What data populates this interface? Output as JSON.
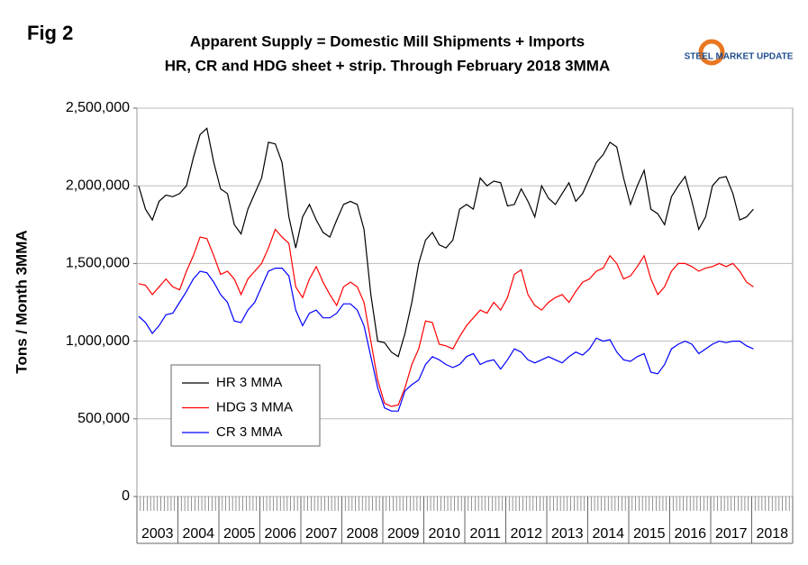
{
  "chart_data": {
    "type": "line",
    "figure_label": "Fig 2",
    "title": "Apparent Supply = Domestic Mill Shipments + Imports",
    "subtitle": "HR, CR and HDG sheet + strip. Through February 2018 3MMA",
    "logo": "STEEL MARKET UPDATE",
    "y_label": "Tons / Month 3MMA",
    "year_labels": [
      "2003",
      "2004",
      "2005",
      "2006",
      "2007",
      "2008",
      "2009",
      "2010",
      "2011",
      "2012",
      "2013",
      "2014",
      "2015",
      "2016",
      "2017",
      "2018"
    ],
    "ylim": [
      0,
      2500000
    ],
    "yticks": [
      0,
      {
        "value": 500000,
        "label": "500,000"
      },
      {
        "value": 1000000,
        "label": "1,000,000"
      },
      {
        "value": 1500000,
        "label": "1,500,000"
      },
      {
        "value": 2000000,
        "label": "2,000,000"
      },
      {
        "value": 2500000,
        "label": "2,500,000"
      }
    ],
    "grid": true,
    "legend": "lower-left",
    "series": [
      {
        "name": "HR 3 MMA",
        "color": "#000000",
        "values": [
          2000000,
          1850000,
          1780000,
          1900000,
          1940000,
          1930000,
          1950000,
          2000000,
          2180000,
          2330000,
          2370000,
          2150000,
          1980000,
          1950000,
          1750000,
          1690000,
          1850000,
          1950000,
          2050000,
          2280000,
          2270000,
          2150000,
          1800000,
          1600000,
          1800000,
          1880000,
          1780000,
          1700000,
          1670000,
          1780000,
          1880000,
          1900000,
          1880000,
          1720000,
          1300000,
          1000000,
          990000,
          930000,
          900000,
          1050000,
          1250000,
          1500000,
          1650000,
          1700000,
          1620000,
          1600000,
          1650000,
          1850000,
          1880000,
          1850000,
          2050000,
          2000000,
          2030000,
          2020000,
          1870000,
          1880000,
          1980000,
          1900000,
          1800000,
          2000000,
          1920000,
          1880000,
          1950000,
          2020000,
          1900000,
          1950000,
          2050000,
          2150000,
          2200000,
          2280000,
          2250000,
          2050000,
          1880000,
          2000000,
          2100000,
          1850000,
          1820000,
          1750000,
          1930000,
          2000000,
          2060000,
          1900000,
          1720000,
          1800000,
          2000000,
          2050000,
          2060000,
          1950000,
          1780000,
          1800000,
          1850000
        ]
      },
      {
        "name": "HDG 3 MMA",
        "color": "#ff0000",
        "values": [
          1370000,
          1360000,
          1300000,
          1350000,
          1400000,
          1350000,
          1330000,
          1450000,
          1550000,
          1670000,
          1660000,
          1550000,
          1430000,
          1450000,
          1400000,
          1300000,
          1400000,
          1450000,
          1500000,
          1600000,
          1720000,
          1670000,
          1630000,
          1350000,
          1280000,
          1400000,
          1480000,
          1380000,
          1300000,
          1230000,
          1350000,
          1380000,
          1350000,
          1250000,
          1000000,
          750000,
          600000,
          580000,
          590000,
          700000,
          850000,
          950000,
          1130000,
          1120000,
          980000,
          970000,
          950000,
          1030000,
          1100000,
          1150000,
          1200000,
          1180000,
          1250000,
          1200000,
          1280000,
          1430000,
          1460000,
          1300000,
          1230000,
          1200000,
          1250000,
          1280000,
          1300000,
          1250000,
          1320000,
          1380000,
          1400000,
          1450000,
          1470000,
          1550000,
          1500000,
          1400000,
          1420000,
          1480000,
          1550000,
          1400000,
          1300000,
          1350000,
          1450000,
          1500000,
          1500000,
          1480000,
          1450000,
          1470000,
          1480000,
          1500000,
          1480000,
          1500000,
          1450000,
          1380000,
          1350000
        ]
      },
      {
        "name": "CR 3 MMA",
        "color": "#0000ff",
        "values": [
          1160000,
          1120000,
          1050000,
          1100000,
          1170000,
          1180000,
          1250000,
          1320000,
          1400000,
          1450000,
          1440000,
          1380000,
          1300000,
          1250000,
          1130000,
          1120000,
          1200000,
          1250000,
          1350000,
          1450000,
          1470000,
          1470000,
          1420000,
          1200000,
          1100000,
          1180000,
          1200000,
          1150000,
          1150000,
          1180000,
          1240000,
          1240000,
          1200000,
          1100000,
          900000,
          700000,
          570000,
          550000,
          550000,
          680000,
          720000,
          750000,
          850000,
          900000,
          880000,
          850000,
          830000,
          850000,
          900000,
          920000,
          850000,
          870000,
          880000,
          820000,
          880000,
          950000,
          930000,
          880000,
          860000,
          880000,
          900000,
          880000,
          860000,
          900000,
          930000,
          910000,
          950000,
          1020000,
          1000000,
          1010000,
          930000,
          880000,
          870000,
          900000,
          920000,
          800000,
          790000,
          850000,
          950000,
          980000,
          1000000,
          980000,
          920000,
          950000,
          980000,
          1000000,
          990000,
          1000000,
          1000000,
          970000,
          950000
        ]
      }
    ]
  }
}
